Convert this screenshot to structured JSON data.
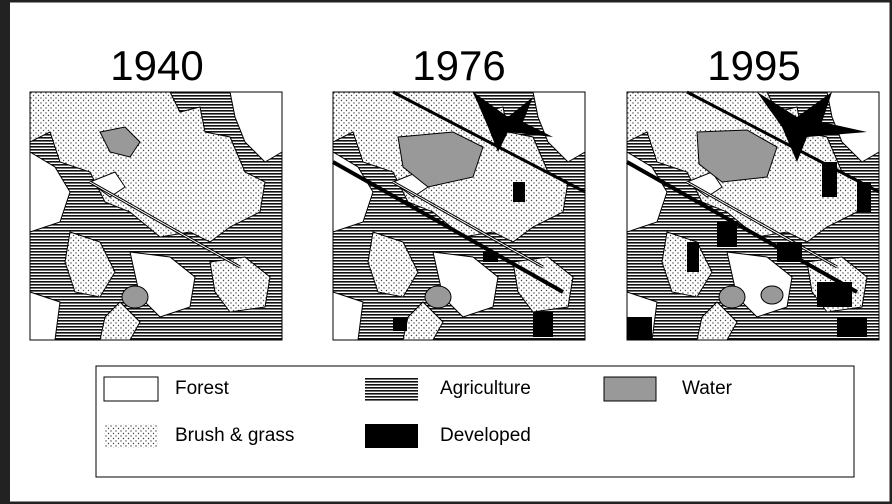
{
  "panels": [
    {
      "title": "1940"
    },
    {
      "title": "1976"
    },
    {
      "title": "1995"
    }
  ],
  "legend": [
    {
      "label": "Forest"
    },
    {
      "label": "Agriculture"
    },
    {
      "label": "Water"
    },
    {
      "label": "Brush & grass"
    },
    {
      "label": "Developed"
    }
  ]
}
